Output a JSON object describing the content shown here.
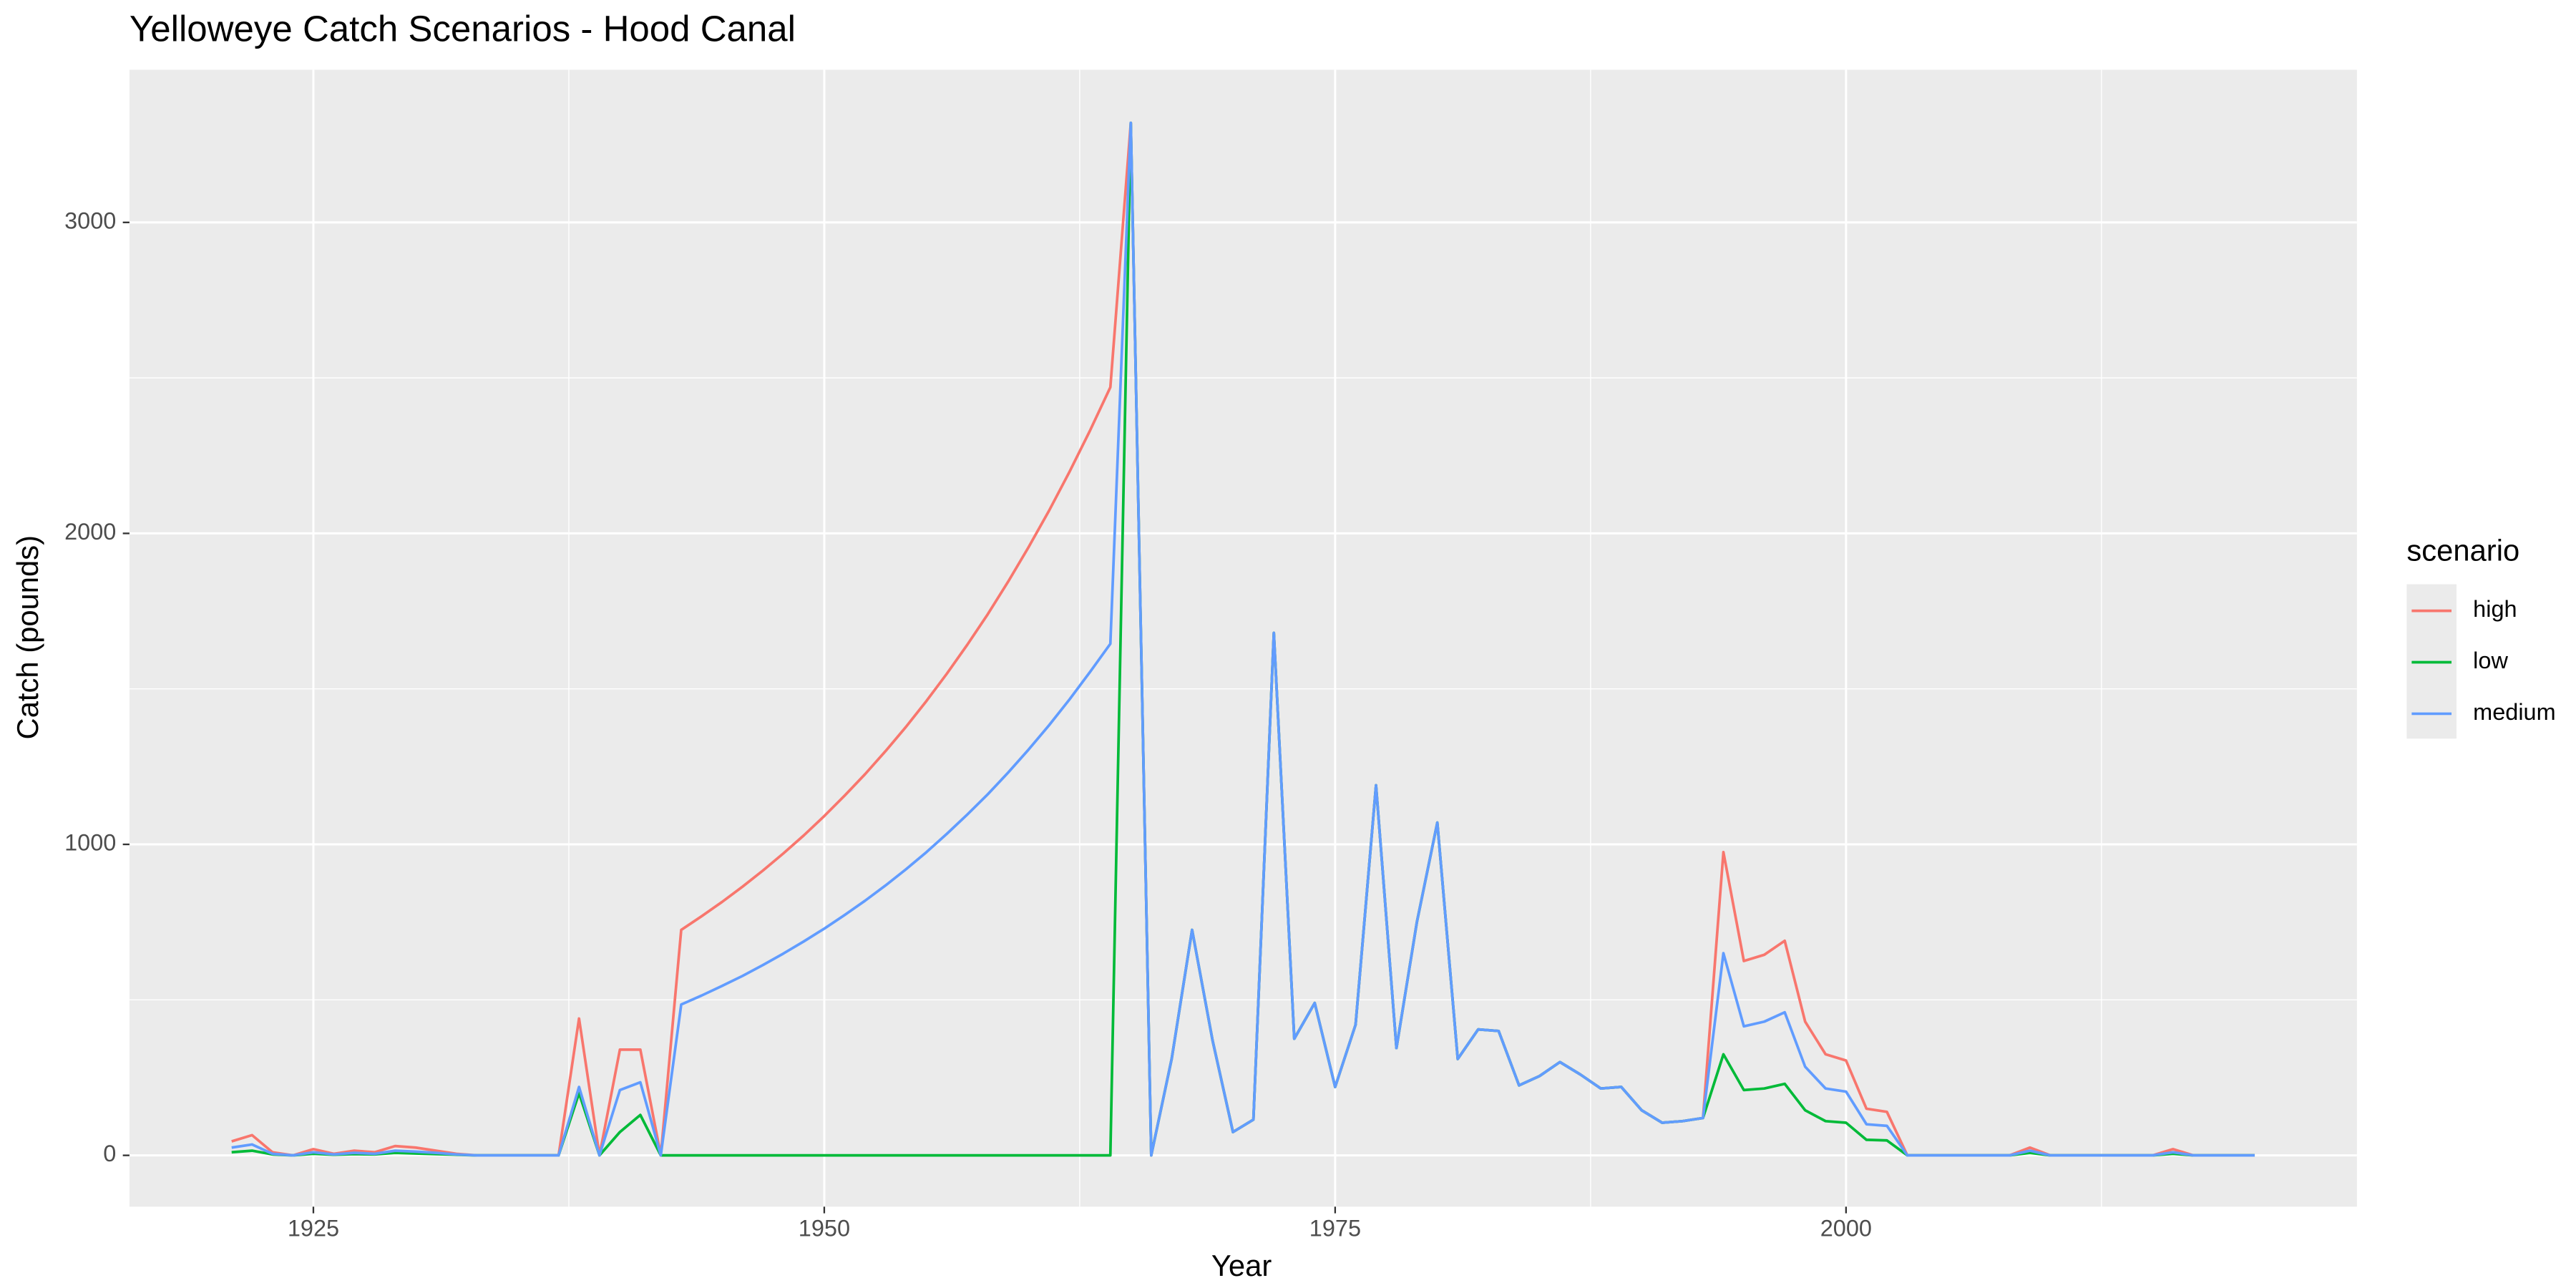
{
  "chart_data": {
    "type": "line",
    "title": "Yelloweye Catch Scenarios - Hood Canal",
    "x_label": "Year",
    "y_label": "Catch (pounds)",
    "legend_title": "scenario",
    "legend_position": "right",
    "grid": true,
    "xlim": [
      1916,
      2025
    ],
    "ylim": [
      -165,
      3491
    ],
    "xticks": [
      1925,
      1950,
      1975,
      2000
    ],
    "yticks": [
      0,
      1000,
      2000,
      3000
    ],
    "xminor": [
      1937.5,
      1962.5,
      1987.5,
      2012.5
    ],
    "yminor": [
      500,
      1500,
      2500
    ],
    "x": [
      1921,
      1922,
      1923,
      1924,
      1925,
      1926,
      1927,
      1928,
      1929,
      1930,
      1931,
      1932,
      1933,
      1934,
      1935,
      1936,
      1937,
      1938,
      1939,
      1940,
      1941,
      1942,
      1943,
      1944,
      1945,
      1946,
      1947,
      1948,
      1949,
      1950,
      1951,
      1952,
      1953,
      1954,
      1955,
      1956,
      1957,
      1958,
      1959,
      1960,
      1961,
      1962,
      1963,
      1964,
      1965,
      1966,
      1967,
      1968,
      1969,
      1970,
      1971,
      1972,
      1973,
      1974,
      1975,
      1976,
      1977,
      1978,
      1979,
      1980,
      1981,
      1982,
      1983,
      1984,
      1985,
      1986,
      1987,
      1988,
      1989,
      1990,
      1991,
      1992,
      1993,
      1994,
      1995,
      1996,
      1997,
      1998,
      1999,
      2000,
      2001,
      2002,
      2003,
      2004,
      2005,
      2006,
      2007,
      2008,
      2009,
      2010,
      2011,
      2012,
      2013,
      2014,
      2015,
      2016,
      2017,
      2018,
      2019,
      2020
    ],
    "series": [
      {
        "name": "high",
        "color": "#F8766D",
        "values": [
          45,
          65,
          10,
          0,
          20,
          5,
          15,
          10,
          30,
          25,
          15,
          5,
          0,
          0,
          0,
          0,
          0,
          440,
          0,
          340,
          340,
          0,
          725,
          769,
          815,
          864,
          916,
          971,
          1029,
          1091,
          1157,
          1226,
          1300,
          1378,
          1461,
          1549,
          1642,
          1740,
          1845,
          1956,
          2073,
          2198,
          2330,
          2470,
          3320,
          0,
          310,
          725,
          370,
          75,
          115,
          1680,
          375,
          490,
          220,
          420,
          1190,
          345,
          750,
          1070,
          310,
          405,
          400,
          225,
          255,
          300,
          260,
          215,
          220,
          145,
          105,
          110,
          120,
          975,
          625,
          645,
          690,
          430,
          325,
          305,
          150,
          140,
          0,
          0,
          0,
          0,
          0,
          0,
          25,
          0,
          0,
          0,
          0,
          0,
          0,
          20,
          0,
          0,
          0,
          0
        ]
      },
      {
        "name": "low",
        "color": "#00BA38",
        "values": [
          10,
          15,
          3,
          0,
          5,
          2,
          4,
          3,
          8,
          6,
          4,
          2,
          0,
          0,
          0,
          0,
          0,
          200,
          0,
          75,
          130,
          0,
          0,
          0,
          0,
          0,
          0,
          0,
          0,
          0,
          0,
          0,
          0,
          0,
          0,
          0,
          0,
          0,
          0,
          0,
          0,
          0,
          0,
          0,
          3320,
          0,
          310,
          725,
          370,
          75,
          115,
          1680,
          375,
          490,
          220,
          420,
          1190,
          345,
          750,
          1070,
          310,
          405,
          400,
          225,
          255,
          300,
          260,
          215,
          220,
          145,
          105,
          110,
          120,
          325,
          210,
          215,
          230,
          145,
          110,
          105,
          50,
          48,
          0,
          0,
          0,
          0,
          0,
          0,
          8,
          0,
          0,
          0,
          0,
          0,
          0,
          5,
          0,
          0,
          0,
          0
        ]
      },
      {
        "name": "medium",
        "color": "#619CFF",
        "values": [
          25,
          35,
          5,
          0,
          10,
          3,
          8,
          5,
          15,
          12,
          8,
          3,
          0,
          0,
          0,
          0,
          0,
          220,
          0,
          210,
          235,
          0,
          485,
          514,
          545,
          577,
          612,
          649,
          688,
          729,
          773,
          819,
          868,
          920,
          975,
          1034,
          1096,
          1161,
          1231,
          1305,
          1383,
          1466,
          1554,
          1645,
          3320,
          0,
          310,
          725,
          370,
          75,
          115,
          1680,
          375,
          490,
          220,
          420,
          1190,
          345,
          750,
          1070,
          310,
          405,
          400,
          225,
          255,
          300,
          260,
          215,
          220,
          145,
          105,
          110,
          120,
          650,
          415,
          430,
          460,
          285,
          215,
          205,
          100,
          95,
          0,
          0,
          0,
          0,
          0,
          0,
          15,
          0,
          0,
          0,
          0,
          0,
          0,
          10,
          0,
          0,
          0,
          0
        ]
      }
    ]
  }
}
